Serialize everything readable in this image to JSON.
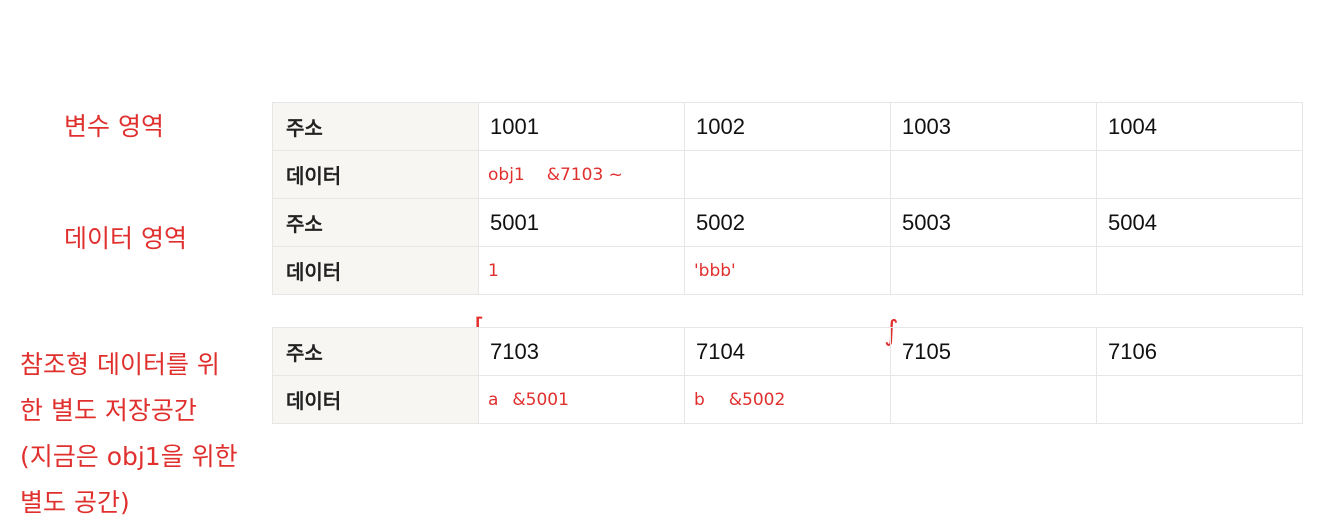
{
  "labels": {
    "variable_area": "변수 영역",
    "data_area": "데이터 영역",
    "ref_area_lines": [
      "참조형 데이터를 위",
      "한 별도 저장공간",
      "(지금은 obj1을 위한",
      "별도 공간)"
    ]
  },
  "row_headers": {
    "address": "주소",
    "data": "데이터"
  },
  "variable_table": {
    "addresses": [
      "1001",
      "1002",
      "1003",
      "1004"
    ],
    "data": [
      {
        "name": "obj1",
        "value": "&7103 ~"
      },
      {
        "name": "",
        "value": ""
      },
      {
        "name": "",
        "value": ""
      },
      {
        "name": "",
        "value": ""
      }
    ]
  },
  "data_table": {
    "addresses": [
      "5001",
      "5002",
      "5003",
      "5004"
    ],
    "data": [
      "1",
      "'bbb'",
      "",
      ""
    ]
  },
  "ref_table": {
    "addresses": [
      "7103",
      "7104",
      "7105",
      "7106"
    ],
    "data": [
      {
        "name": "a",
        "value": "&5001"
      },
      {
        "name": "b",
        "value": "&5002"
      },
      {
        "name": "",
        "value": ""
      },
      {
        "name": "",
        "value": ""
      }
    ]
  },
  "colors": {
    "annotation": "#e0302e",
    "header_bg": "#f7f6f3",
    "border": "#e6e6e6"
  }
}
